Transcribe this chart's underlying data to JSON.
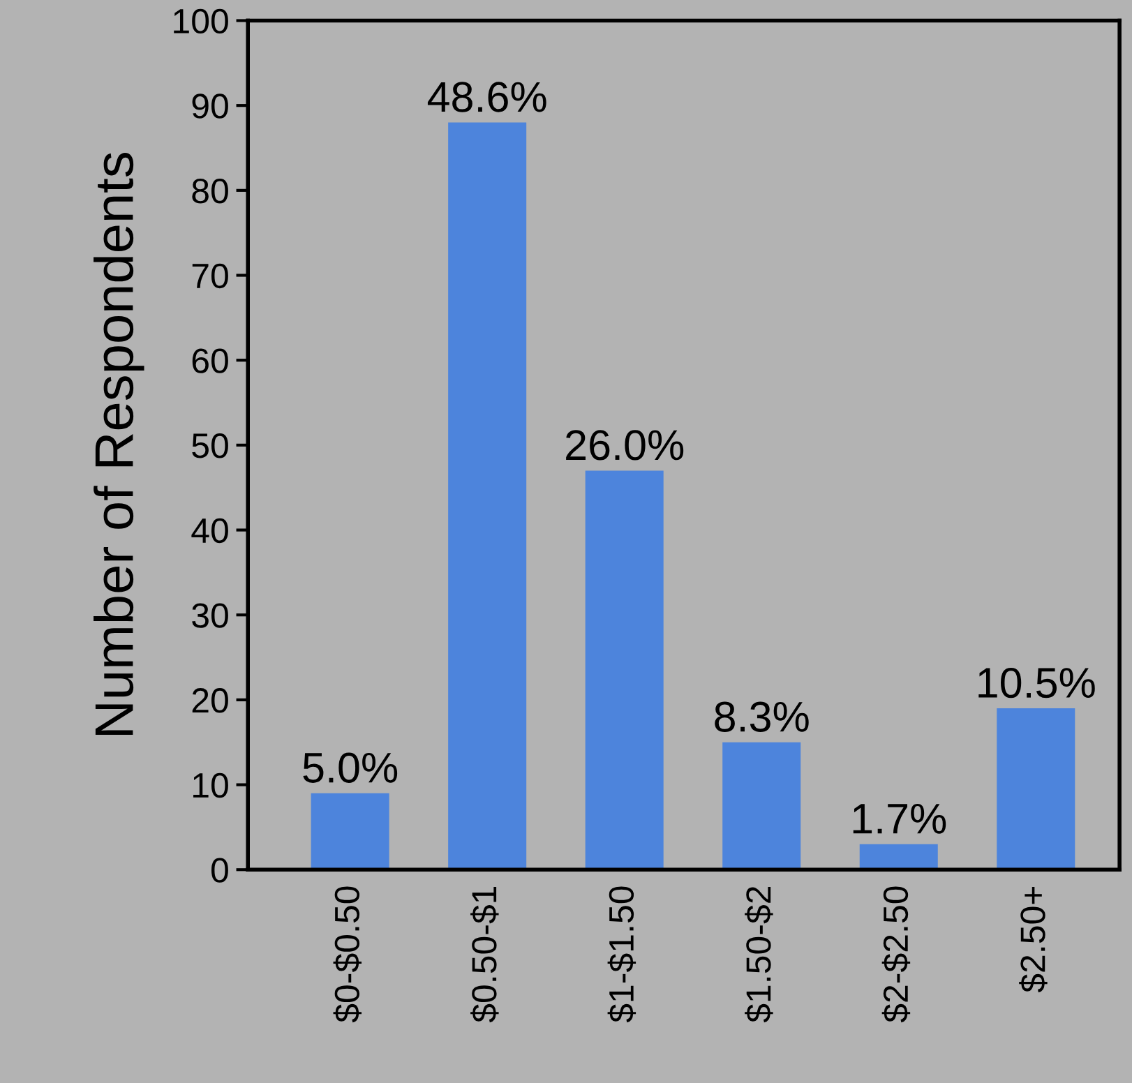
{
  "chart_data": {
    "type": "bar",
    "ylabel": "Number of Respondents",
    "categories": [
      "$0-$0.50",
      "$0.50-$1",
      "$1-$1.50",
      "$1.50-$2",
      "$2-$2.50",
      "$2.50+"
    ],
    "values": [
      9,
      88,
      47,
      15,
      3,
      19
    ],
    "annotations": [
      {
        "text": "5.0%",
        "x": "$0-$0.50",
        "y": 9
      },
      {
        "text": "48.6%",
        "x": "$0.50-$1",
        "y": 88
      },
      {
        "text": "26.0%",
        "x": "$1-$1.50",
        "y": 47
      },
      {
        "text": "8.3%",
        "x": "$1.50-$2",
        "y": 15
      },
      {
        "text": "1.7%",
        "x": "$2-$2.50",
        "y": 3
      },
      {
        "text": "10.5%",
        "x": "$2.50+",
        "y": 19
      }
    ],
    "color": "#4d84dc",
    "ylim": [
      0,
      100
    ],
    "yticks": [
      0,
      10,
      20,
      30,
      40,
      50,
      60,
      70,
      80,
      90,
      100
    ],
    "grid": false,
    "legend": false
  }
}
